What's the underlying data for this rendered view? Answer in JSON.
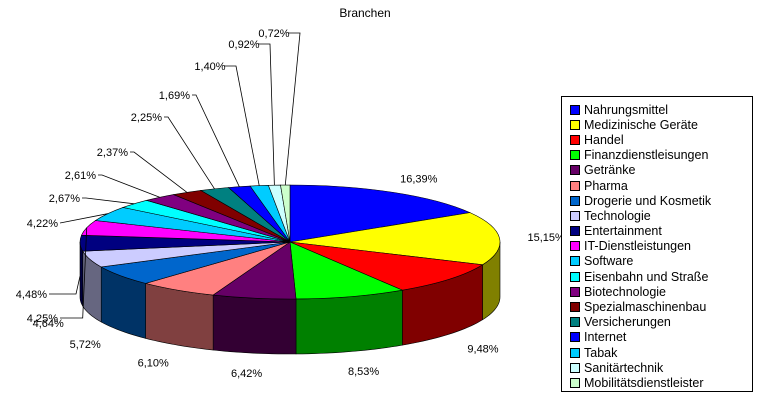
{
  "chart_data": {
    "type": "pie",
    "title": "Branchen",
    "legend_position": "right",
    "slices": [
      {
        "name": "Nahrungsmittel",
        "label": "16,39%",
        "value": 16.39,
        "color": "#0000FF"
      },
      {
        "name": "Medizinische Geräte",
        "label": "15,15%",
        "value": 15.15,
        "color": "#FFFF00"
      },
      {
        "name": "Handel",
        "label": "9,48%",
        "value": 9.48,
        "color": "#FF0000"
      },
      {
        "name": "Finanzdienstleisungen",
        "label": "8,53%",
        "value": 8.53,
        "color": "#00FF00"
      },
      {
        "name": "Getränke",
        "label": "6,42%",
        "value": 6.42,
        "color": "#660066"
      },
      {
        "name": "Pharma",
        "label": "6,10%",
        "value": 6.1,
        "color": "#FF8080"
      },
      {
        "name": "Drogerie und Kosmetik",
        "label": "5,72%",
        "value": 5.72,
        "color": "#0066CC"
      },
      {
        "name": "Technologie",
        "label": "4,64%",
        "value": 4.64,
        "color": "#CCCCFF"
      },
      {
        "name": "Entertainment",
        "label": "4,48%",
        "value": 4.48,
        "color": "#000080"
      },
      {
        "name": "IT-Dienstleistungen",
        "label": "4,25%",
        "value": 4.25,
        "color": "#FF00FF"
      },
      {
        "name": "Software",
        "label": "4,22%",
        "value": 4.22,
        "color": "#00CCFF"
      },
      {
        "name": "Eisenbahn und Straße",
        "label": "2,67%",
        "value": 2.67,
        "color": "#00FFFF"
      },
      {
        "name": "Biotechnologie",
        "label": "2,61%",
        "value": 2.61,
        "color": "#800080"
      },
      {
        "name": "Spezialmaschinenbau",
        "label": "2,37%",
        "value": 2.37,
        "color": "#800000"
      },
      {
        "name": "Versicherungen",
        "label": "2,25%",
        "value": 2.25,
        "color": "#008080"
      },
      {
        "name": "Internet",
        "label": "1,69%",
        "value": 1.69,
        "color": "#0000FF"
      },
      {
        "name": "Tabak",
        "label": "1,40%",
        "value": 1.4,
        "color": "#00CCFF"
      },
      {
        "name": "Sanitärtechnik",
        "label": "0,92%",
        "value": 0.92,
        "color": "#CCFFFF"
      },
      {
        "name": "Mobilitätsdienstleister",
        "label": "0,72%",
        "value": 0.72,
        "color": "#CCFFCC"
      }
    ]
  }
}
